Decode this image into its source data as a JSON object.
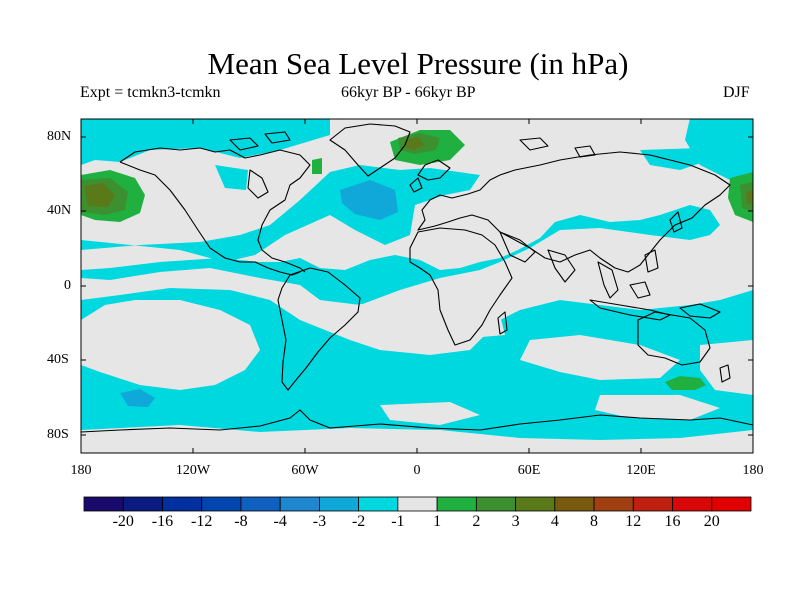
{
  "title": "Mean Sea Level Pressure (in hPa)",
  "subtitle_left": "Expt = tcmkn3-tcmkn",
  "subtitle_center": "66kyr BP - 66kyr BP",
  "subtitle_right": "DJF",
  "lat_labels": [
    "80N",
    "40N",
    "0",
    "40S",
    "80S"
  ],
  "lon_labels": [
    "180",
    "120W",
    "60W",
    "0",
    "60E",
    "120E",
    "180"
  ],
  "colorbar": {
    "labels": [
      "-20",
      "-16",
      "-12",
      "-8",
      "-4",
      "-3",
      "-2",
      "-1",
      "1",
      "2",
      "3",
      "4",
      "8",
      "12",
      "16",
      "20"
    ],
    "colors": [
      "#1a0a6b",
      "#0a1a80",
      "#0030a0",
      "#0046b0",
      "#1060c0",
      "#1f86d0",
      "#0fa8d8",
      "#00d8e0",
      "#e6e6e6",
      "#20b040",
      "#3c9030",
      "#5a7a1a",
      "#7a5a10",
      "#a04010",
      "#c02010",
      "#d80808",
      "#e00000"
    ]
  },
  "colors": {
    "neutral": "#e6e6e6",
    "neg1": "#00d8e0",
    "neg2": "#0fa8d8",
    "pos1": "#20b040",
    "pos2": "#3c9030",
    "pos3": "#5a7a1a"
  }
}
